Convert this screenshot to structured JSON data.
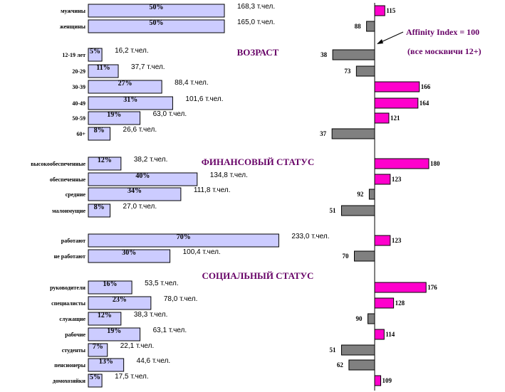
{
  "chart_data": {
    "type": "bar",
    "sections": [
      {
        "title": "",
        "start": 0
      },
      {
        "title": "ВОЗРАСТ",
        "start": 2
      },
      {
        "title": "ФИНАНСОВЫЙ СТАТУС",
        "start": 8
      },
      {
        "title": "",
        "start": 12
      },
      {
        "title": "СОЦИАЛЬНЫЙ СТАТУС",
        "start": 14
      }
    ],
    "categories": [
      "мужчины",
      "женщины",
      "12-19 лет",
      "20-29",
      "30-39",
      "40-49",
      "50-59",
      "60+",
      "высокообеспеченные",
      "обеспеченные",
      "средние",
      "малоимущие",
      "работают",
      "не работают",
      "руководители",
      "специалисты",
      "служащие",
      "рабочие",
      "студенты",
      "пенсионеры",
      "домохозяйки"
    ],
    "series": [
      {
        "values": [
          50,
          50,
          5,
          11,
          27,
          31,
          19,
          8,
          12,
          40,
          34,
          8,
          70,
          30,
          16,
          23,
          12,
          19,
          7,
          13,
          5
        ],
        "labels": [
          "50%",
          "50%",
          "5%",
          "11%",
          "27%",
          "31%",
          "19%",
          "8%",
          "12%",
          "40%",
          "34%",
          "8%",
          "70%",
          "30%",
          "16%",
          "23%",
          "12%",
          "19%",
          "7%",
          "13%",
          "5%"
        ]
      },
      {
        "values": [
          168.3,
          165.0,
          16.2,
          37.7,
          88.4,
          101.6,
          63.0,
          26.6,
          38.2,
          134.8,
          111.8,
          27.0,
          233.0,
          100.4,
          53.5,
          78.0,
          38.3,
          63.1,
          22.1,
          44.6,
          17.5
        ],
        "labels": [
          "168,3 т.чел.",
          "165,0 т.чел.",
          "16,2 т.чел.",
          "37,7 т.чел.",
          "88,4 т.чел.",
          "101,6 т.чел.",
          "63,0 т.чел.",
          "26,6 т.чел.",
          "38,2 т.чел.",
          "134,8 т.чел.",
          "111,8 т.чел.",
          "27,0 т.чел.",
          "233,0 т.чел.",
          "100,4 т.чел.",
          "53,5 т.чел.",
          "78,0 т.чел.",
          "38,3 т.чел.",
          "63,1 т.чел.",
          "22,1 т.чел.",
          "44,6 т.чел.",
          "17,5 т.чел."
        ]
      },
      {
        "values": [
          115,
          88,
          38,
          73,
          166,
          164,
          121,
          37,
          180,
          123,
          92,
          51,
          123,
          70,
          176,
          128,
          90,
          114,
          51,
          62,
          109
        ],
        "labels": [
          "115",
          "88",
          "38",
          "73",
          "166",
          "164",
          "121",
          "37",
          "180",
          "123",
          "92",
          "51",
          "123",
          "70",
          "176",
          "128",
          "90",
          "114",
          "51",
          "62",
          "109"
        ]
      }
    ],
    "baseline": 100,
    "annotation_line1": "Affinity Index = 100",
    "annotation_line2": "(все москвичи 12+)",
    "colors": {
      "share_fill": "#ccccff",
      "above_fill": "#ff00cc",
      "below_fill": "#808080",
      "heading": "#660066"
    }
  }
}
